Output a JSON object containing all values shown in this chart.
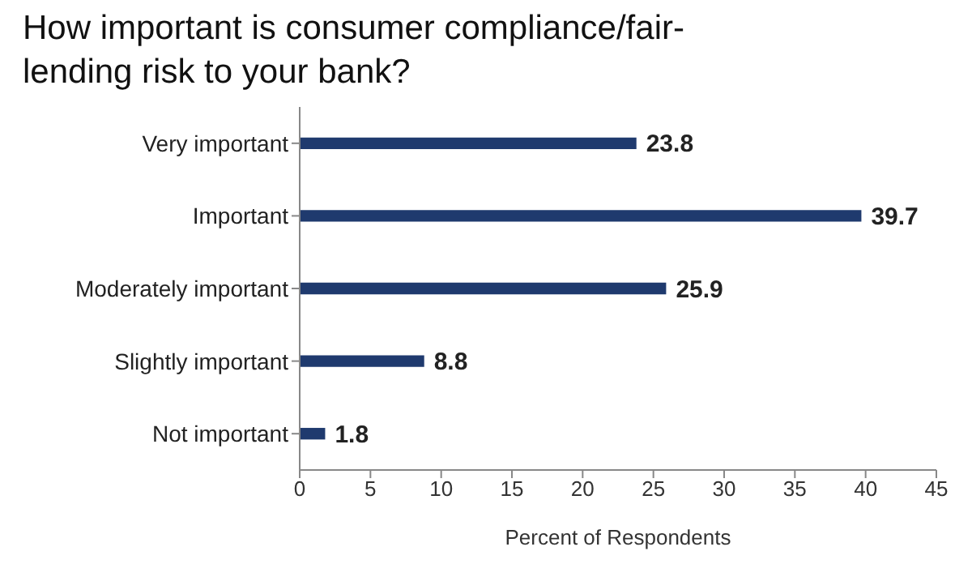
{
  "chart_data": {
    "type": "bar",
    "orientation": "horizontal",
    "title": "How important is consumer compliance/fair-lending risk to your bank?",
    "xlabel": "Percent of Respondents",
    "categories": [
      "Very important",
      "Important",
      "Moderately important",
      "Slightly important",
      "Not important"
    ],
    "values": [
      23.8,
      39.7,
      25.9,
      8.8,
      1.8
    ],
    "color": "#1f3a6e",
    "data_labels": true,
    "xlim": [
      0,
      45
    ],
    "xticks": [
      0,
      5,
      10,
      15,
      20,
      25,
      30,
      35,
      40,
      45
    ],
    "grid": false,
    "legend": false
  }
}
